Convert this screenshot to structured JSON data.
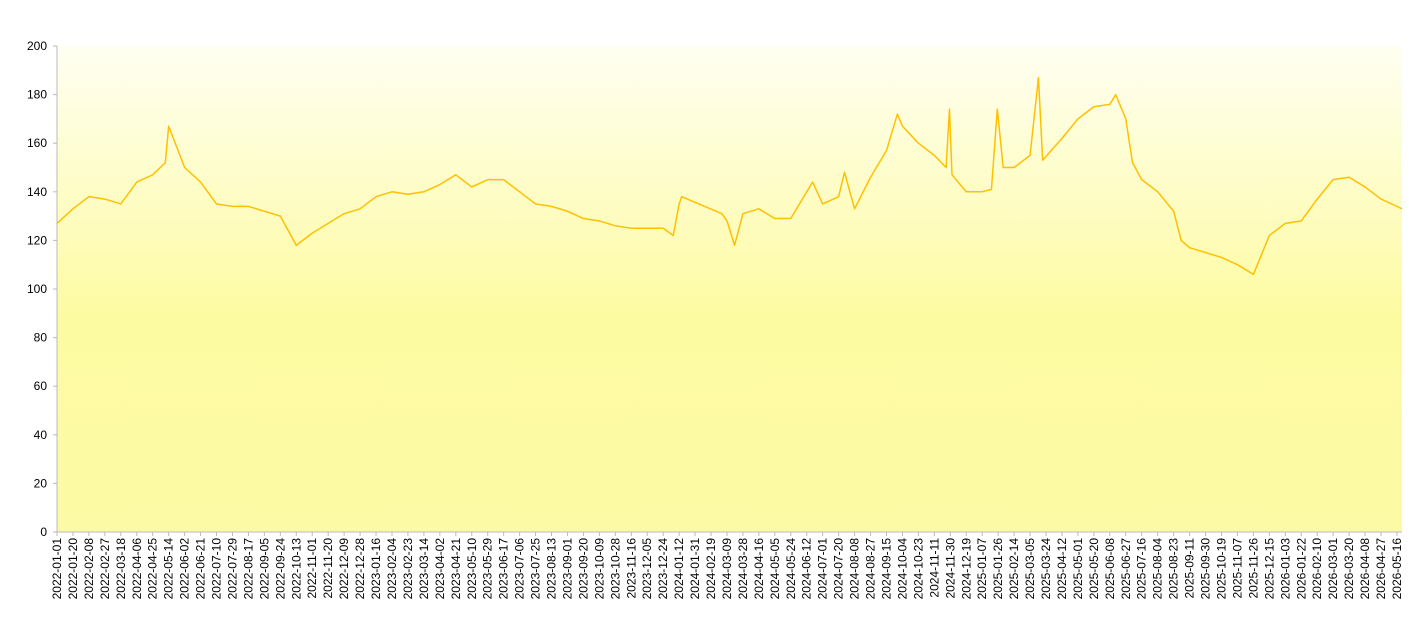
{
  "chart_data": {
    "type": "line",
    "x": [
      "2022-01-01",
      "2022-01-20",
      "2022-02-08",
      "2022-02-27",
      "2022-03-18",
      "2022-04-06",
      "2022-04-25",
      "2022-05-10",
      "2022-05-14",
      "2022-06-02",
      "2022-06-21",
      "2022-07-10",
      "2022-07-29",
      "2022-08-17",
      "2022-09-05",
      "2022-09-24",
      "2022-10-13",
      "2022-11-01",
      "2022-11-20",
      "2022-12-09",
      "2022-12-28",
      "2023-01-16",
      "2023-02-04",
      "2023-02-23",
      "2023-03-14",
      "2023-04-02",
      "2023-04-21",
      "2023-05-10",
      "2023-05-29",
      "2023-06-17",
      "2023-07-06",
      "2023-07-25",
      "2023-08-13",
      "2023-09-01",
      "2023-09-20",
      "2023-10-09",
      "2023-10-28",
      "2023-11-16",
      "2023-12-05",
      "2023-12-24",
      "2024-01-05",
      "2024-01-12",
      "2024-01-15",
      "2024-03-03",
      "2024-03-09",
      "2024-03-18",
      "2024-03-28",
      "2024-04-16",
      "2024-05-05",
      "2024-05-24",
      "2024-06-12",
      "2024-06-19",
      "2024-07-01",
      "2024-07-20",
      "2024-07-27",
      "2024-08-08",
      "2024-08-27",
      "2024-09-15",
      "2024-09-28",
      "2024-10-04",
      "2024-10-23",
      "2024-11-11",
      "2024-11-25",
      "2024-11-29",
      "2024-12-02",
      "2024-12-19",
      "2025-01-07",
      "2025-01-18",
      "2025-01-25",
      "2025-02-01",
      "2025-02-14",
      "2025-03-05",
      "2025-03-15",
      "2025-03-20",
      "2025-04-12",
      "2025-05-01",
      "2025-05-20",
      "2025-06-08",
      "2025-06-15",
      "2025-06-27",
      "2025-07-05",
      "2025-07-16",
      "2025-08-04",
      "2025-08-23",
      "2025-09-01",
      "2025-09-11",
      "2025-09-30",
      "2025-10-19",
      "2025-11-07",
      "2025-11-26",
      "2025-12-15",
      "2026-01-03",
      "2026-01-22",
      "2026-02-10",
      "2026-03-01",
      "2026-03-20",
      "2026-04-08",
      "2026-04-27",
      "2026-05-16",
      "2026-05-22"
    ],
    "values": [
      127,
      133,
      138,
      137,
      135,
      144,
      147,
      152,
      167,
      150,
      144,
      135,
      134,
      134,
      132,
      130,
      118,
      123,
      127,
      131,
      133,
      138,
      140,
      139,
      140,
      143,
      147,
      142,
      145,
      145,
      140,
      135,
      134,
      132,
      129,
      128,
      126,
      125,
      125,
      125,
      122,
      135,
      138,
      131,
      128,
      118,
      131,
      133,
      129,
      129,
      140,
      144,
      135,
      138,
      148,
      133,
      146,
      157,
      172,
      167,
      160,
      155,
      150,
      174,
      147,
      140,
      140,
      141,
      174,
      150,
      150,
      155,
      187,
      153,
      162,
      170,
      175,
      176,
      180,
      170,
      152,
      145,
      140,
      132,
      120,
      117,
      115,
      113,
      110,
      106,
      122,
      127,
      128,
      137,
      145,
      146,
      142,
      137,
      134,
      133
    ],
    "color": "#ffc000",
    "xlim": [
      "2022-01-01",
      "2026-05-22"
    ],
    "xticks": [
      "2022-01-01",
      "2022-01-20",
      "2022-02-08",
      "2022-02-27",
      "2022-03-18",
      "2022-04-06",
      "2022-04-25",
      "2022-05-14",
      "2022-06-02",
      "2022-06-21",
      "2022-07-10",
      "2022-07-29",
      "2022-08-17",
      "2022-09-05",
      "2022-09-24",
      "2022-10-13",
      "2022-11-01",
      "2022-11-20",
      "2022-12-09",
      "2022-12-28",
      "2023-01-16",
      "2023-02-04",
      "2023-02-23",
      "2023-03-14",
      "2023-04-02",
      "2023-04-21",
      "2023-05-10",
      "2023-05-29",
      "2023-06-17",
      "2023-07-06",
      "2023-07-25",
      "2023-08-13",
      "2023-09-01",
      "2023-09-20",
      "2023-10-09",
      "2023-10-28",
      "2023-11-16",
      "2023-12-05",
      "2023-12-24",
      "2024-01-12",
      "2024-01-31",
      "2024-02-19",
      "2024-03-09",
      "2024-03-28",
      "2024-04-16",
      "2024-05-05",
      "2024-05-24",
      "2024-06-12",
      "2024-07-01",
      "2024-07-20",
      "2024-08-08",
      "2024-08-27",
      "2024-09-15",
      "2024-10-04",
      "2024-10-23",
      "2024-11-11",
      "2024-11-30",
      "2024-12-19",
      "2025-01-07",
      "2025-01-26",
      "2025-02-14",
      "2025-03-05",
      "2025-03-24",
      "2025-04-12",
      "2025-05-01",
      "2025-05-20",
      "2025-06-08",
      "2025-06-27",
      "2025-07-16",
      "2025-08-04",
      "2025-08-23",
      "2025-09-11",
      "2025-09-30",
      "2025-10-19",
      "2025-11-07",
      "2025-11-26",
      "2025-12-15",
      "2026-01-03",
      "2026-01-22",
      "2026-02-10",
      "2026-03-01",
      "2026-03-20",
      "2026-04-08",
      "2026-04-27",
      "2026-05-16"
    ],
    "ylim": [
      0,
      200
    ],
    "yticks": [
      0,
      20,
      40,
      60,
      80,
      100,
      120,
      140,
      160,
      180,
      200
    ]
  }
}
